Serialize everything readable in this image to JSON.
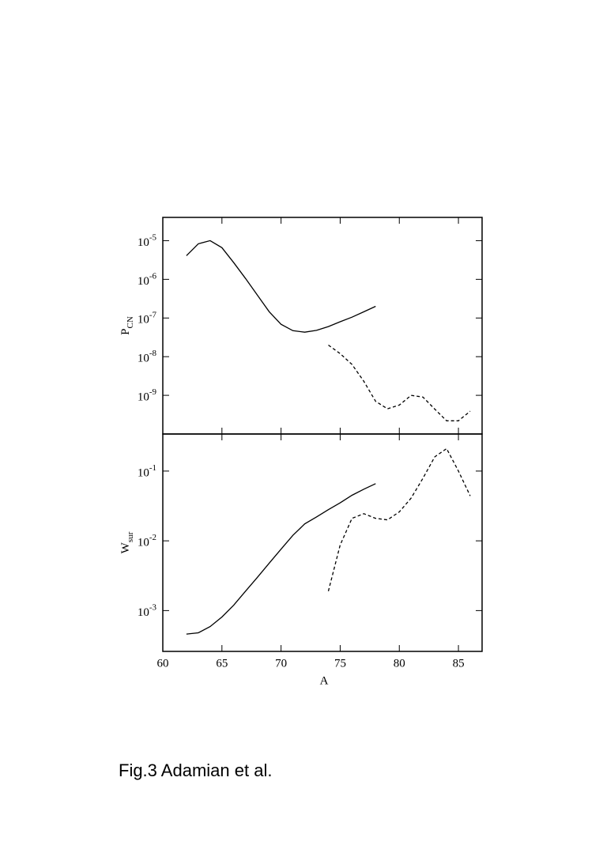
{
  "caption": "Fig.3 Adamian et al.",
  "chart_data": [
    {
      "type": "line",
      "ylabel": "P",
      "ylabel_sub": "CN",
      "log_y": true,
      "xtick_labels": false,
      "x": [
        62,
        63,
        64,
        65,
        66,
        67,
        68,
        69,
        70,
        71,
        72,
        73,
        74,
        75,
        76,
        77,
        78,
        79,
        80,
        81,
        82,
        83,
        84,
        85,
        86
      ],
      "xlim": [
        60,
        87
      ],
      "xticks": [
        60,
        65,
        70,
        75,
        80,
        85
      ],
      "ylim": [
        1e-10,
        4e-05
      ],
      "yticks": [
        {
          "value": 1e-09,
          "label": "10^-9"
        },
        {
          "value": 1e-08,
          "label": "10^-8"
        },
        {
          "value": 1e-07,
          "label": "10^-7"
        },
        {
          "value": 1e-06,
          "label": "10^-6"
        },
        {
          "value": 1e-05,
          "label": "10^-5"
        }
      ],
      "series": [
        {
          "color": "#000000",
          "dash": false,
          "values": [
            4.1e-06,
            8.3e-06,
            1e-05,
            6.6e-06,
            2.7e-06,
            1.05e-06,
            3.9e-07,
            1.45e-07,
            6.9e-08,
            4.7e-08,
            4.3e-08,
            4.8e-08,
            6e-08,
            8e-08,
            1.05e-07,
            1.45e-07,
            2e-07,
            null,
            null,
            null,
            null,
            null,
            null,
            null,
            null
          ]
        },
        {
          "color": "#000000",
          "dash": true,
          "values": [
            null,
            null,
            null,
            null,
            null,
            null,
            null,
            null,
            null,
            null,
            null,
            null,
            2e-08,
            1.2e-08,
            6.3e-09,
            2.3e-09,
            7e-10,
            4.5e-10,
            5.6e-10,
            1e-09,
            9e-10,
            4.4e-10,
            2.2e-10,
            2.2e-10,
            3.9e-10
          ]
        }
      ]
    },
    {
      "type": "line",
      "ylabel": "W",
      "ylabel_sub": "sur",
      "log_y": true,
      "xtick_labels": true,
      "xlabel": "A",
      "x": [
        62,
        63,
        64,
        65,
        66,
        67,
        68,
        69,
        70,
        71,
        72,
        73,
        74,
        75,
        76,
        77,
        78,
        79,
        80,
        81,
        82,
        83,
        84,
        85,
        86
      ],
      "xlim": [
        60,
        87
      ],
      "xticks": [
        60,
        65,
        70,
        75,
        80,
        85
      ],
      "ylim": [
        0.00026,
        0.34
      ],
      "yticks": [
        {
          "value": 0.001,
          "label": "10^-3"
        },
        {
          "value": 0.01,
          "label": "10^-2"
        },
        {
          "value": 0.1,
          "label": "10^-1"
        }
      ],
      "series": [
        {
          "color": "#000000",
          "dash": false,
          "values": [
            0.00046,
            0.00048,
            0.00059,
            0.00081,
            0.0012,
            0.0019,
            0.003,
            0.0048,
            0.0076,
            0.012,
            0.0175,
            0.022,
            0.028,
            0.035,
            0.045,
            0.055,
            0.066,
            null,
            null,
            null,
            null,
            null,
            null,
            null,
            null
          ]
        },
        {
          "color": "#000000",
          "dash": true,
          "values": [
            null,
            null,
            null,
            null,
            null,
            null,
            null,
            null,
            null,
            null,
            null,
            null,
            0.0019,
            0.0087,
            0.021,
            0.0245,
            0.021,
            0.02,
            0.026,
            0.041,
            0.079,
            0.16,
            0.21,
            0.1,
            0.044
          ]
        }
      ]
    }
  ]
}
